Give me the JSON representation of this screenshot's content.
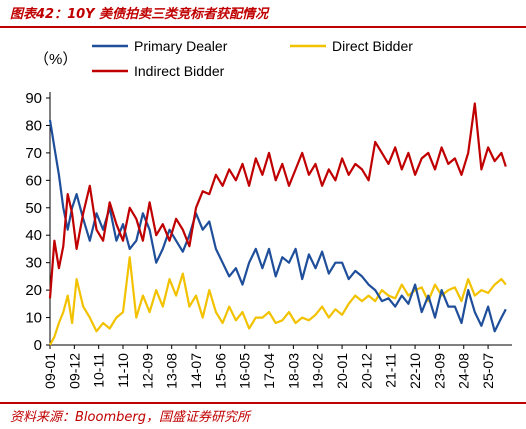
{
  "header": {
    "title": "图表42：10Y 美债拍卖三类竞标者获配情况"
  },
  "footer": {
    "source": "资料来源：Bloomberg，国盛证券研究所"
  },
  "chart_data": {
    "type": "line",
    "title": "图表42：10Y 美债拍卖三类竞标者获配情况",
    "ylabel": "（%）",
    "xlabel": "",
    "ylim": [
      0,
      90
    ],
    "yticks": [
      0,
      10,
      20,
      30,
      40,
      50,
      60,
      70,
      80,
      90
    ],
    "xlim": [
      "2009-01",
      "2026-04"
    ],
    "xticks": [
      "09-01",
      "09-12",
      "10-11",
      "11-10",
      "12-09",
      "13-08",
      "14-07",
      "15-06",
      "16-05",
      "17-04",
      "18-03",
      "19-02",
      "20-01",
      "20-12",
      "21-11",
      "22-10",
      "23-09",
      "24-08",
      "25-07"
    ],
    "grid": false,
    "legend": "top",
    "colors": {
      "Primary Dealer": "#1f4e9a",
      "Direct Bidder": "#f2c200",
      "Indirect Bidder": "#c00000"
    },
    "series": [
      {
        "name": "Primary Dealer",
        "x": [
          "2009-01",
          "2009-03",
          "2009-05",
          "2009-07",
          "2009-09",
          "2009-11",
          "2010-01",
          "2010-04",
          "2010-07",
          "2010-10",
          "2011-01",
          "2011-04",
          "2011-07",
          "2011-10",
          "2012-01",
          "2012-04",
          "2012-07",
          "2012-10",
          "2013-01",
          "2013-04",
          "2013-07",
          "2013-10",
          "2014-01",
          "2014-04",
          "2014-07",
          "2014-10",
          "2015-01",
          "2015-04",
          "2015-07",
          "2015-10",
          "2016-01",
          "2016-04",
          "2016-07",
          "2016-10",
          "2017-01",
          "2017-04",
          "2017-07",
          "2017-10",
          "2018-01",
          "2018-04",
          "2018-07",
          "2018-10",
          "2019-01",
          "2019-04",
          "2019-07",
          "2019-10",
          "2020-01",
          "2020-04",
          "2020-07",
          "2020-10",
          "2021-01",
          "2021-04",
          "2021-07",
          "2021-10",
          "2022-01",
          "2022-04",
          "2022-07",
          "2022-10",
          "2023-01",
          "2023-04",
          "2023-07",
          "2023-10",
          "2024-01",
          "2024-04",
          "2024-07",
          "2024-10",
          "2025-01",
          "2025-04",
          "2025-07",
          "2025-10",
          "2026-01",
          "2026-03"
        ],
        "values": [
          82,
          72,
          62,
          50,
          42,
          50,
          55,
          46,
          38,
          48,
          42,
          50,
          38,
          44,
          35,
          38,
          48,
          42,
          30,
          35,
          42,
          38,
          34,
          40,
          48,
          42,
          45,
          35,
          30,
          25,
          28,
          22,
          30,
          35,
          28,
          35,
          25,
          32,
          30,
          35,
          24,
          33,
          28,
          34,
          26,
          30,
          30,
          24,
          27,
          25,
          22,
          20,
          16,
          17,
          14,
          18,
          15,
          22,
          12,
          18,
          10,
          20,
          14,
          14,
          8,
          20,
          12,
          7,
          14,
          5,
          10,
          13
        ]
      },
      {
        "name": "Direct Bidder",
        "x": [
          "2009-01",
          "2009-03",
          "2009-05",
          "2009-07",
          "2009-09",
          "2009-11",
          "2010-01",
          "2010-04",
          "2010-07",
          "2010-10",
          "2011-01",
          "2011-04",
          "2011-07",
          "2011-10",
          "2012-01",
          "2012-04",
          "2012-07",
          "2012-10",
          "2013-01",
          "2013-04",
          "2013-07",
          "2013-10",
          "2014-01",
          "2014-04",
          "2014-07",
          "2014-10",
          "2015-01",
          "2015-04",
          "2015-07",
          "2015-10",
          "2016-01",
          "2016-04",
          "2016-07",
          "2016-10",
          "2017-01",
          "2017-04",
          "2017-07",
          "2017-10",
          "2018-01",
          "2018-04",
          "2018-07",
          "2018-10",
          "2019-01",
          "2019-04",
          "2019-07",
          "2019-10",
          "2020-01",
          "2020-04",
          "2020-07",
          "2020-10",
          "2021-01",
          "2021-04",
          "2021-07",
          "2021-10",
          "2022-01",
          "2022-04",
          "2022-07",
          "2022-10",
          "2023-01",
          "2023-04",
          "2023-07",
          "2023-10",
          "2024-01",
          "2024-04",
          "2024-07",
          "2024-10",
          "2025-01",
          "2025-04",
          "2025-07",
          "2025-10",
          "2026-01",
          "2026-03"
        ],
        "values": [
          0,
          3,
          8,
          12,
          18,
          8,
          24,
          14,
          10,
          5,
          8,
          6,
          10,
          12,
          32,
          10,
          18,
          12,
          20,
          14,
          24,
          18,
          26,
          14,
          18,
          10,
          20,
          12,
          8,
          14,
          9,
          12,
          6,
          10,
          10,
          12,
          8,
          9,
          12,
          8,
          10,
          9,
          11,
          14,
          10,
          13,
          11,
          15,
          18,
          16,
          18,
          16,
          20,
          18,
          17,
          22,
          18,
          20,
          21,
          16,
          22,
          18,
          20,
          21,
          16,
          24,
          18,
          20,
          19,
          22,
          24,
          22
        ]
      },
      {
        "name": "Indirect Bidder",
        "x": [
          "2009-01",
          "2009-03",
          "2009-05",
          "2009-07",
          "2009-09",
          "2009-11",
          "2010-01",
          "2010-04",
          "2010-07",
          "2010-10",
          "2011-01",
          "2011-04",
          "2011-07",
          "2011-10",
          "2012-01",
          "2012-04",
          "2012-07",
          "2012-10",
          "2013-01",
          "2013-04",
          "2013-07",
          "2013-10",
          "2014-01",
          "2014-04",
          "2014-07",
          "2014-10",
          "2015-01",
          "2015-04",
          "2015-07",
          "2015-10",
          "2016-01",
          "2016-04",
          "2016-07",
          "2016-10",
          "2017-01",
          "2017-04",
          "2017-07",
          "2017-10",
          "2018-01",
          "2018-04",
          "2018-07",
          "2018-10",
          "2019-01",
          "2019-04",
          "2019-07",
          "2019-10",
          "2020-01",
          "2020-04",
          "2020-07",
          "2020-10",
          "2021-01",
          "2021-04",
          "2021-07",
          "2021-10",
          "2022-01",
          "2022-04",
          "2022-07",
          "2022-10",
          "2023-01",
          "2023-04",
          "2023-07",
          "2023-10",
          "2024-01",
          "2024-04",
          "2024-07",
          "2024-10",
          "2025-01",
          "2025-04",
          "2025-07",
          "2025-10",
          "2026-01",
          "2026-03"
        ],
        "values": [
          17,
          38,
          28,
          36,
          55,
          48,
          35,
          48,
          58,
          42,
          38,
          52,
          44,
          38,
          50,
          46,
          38,
          52,
          40,
          44,
          38,
          46,
          42,
          36,
          50,
          56,
          55,
          62,
          58,
          64,
          60,
          66,
          58,
          68,
          62,
          70,
          60,
          66,
          58,
          64,
          70,
          62,
          66,
          58,
          64,
          60,
          68,
          62,
          66,
          64,
          60,
          74,
          70,
          66,
          72,
          64,
          70,
          62,
          68,
          70,
          64,
          72,
          66,
          68,
          62,
          70,
          88,
          64,
          72,
          67,
          70,
          65
        ]
      }
    ]
  }
}
